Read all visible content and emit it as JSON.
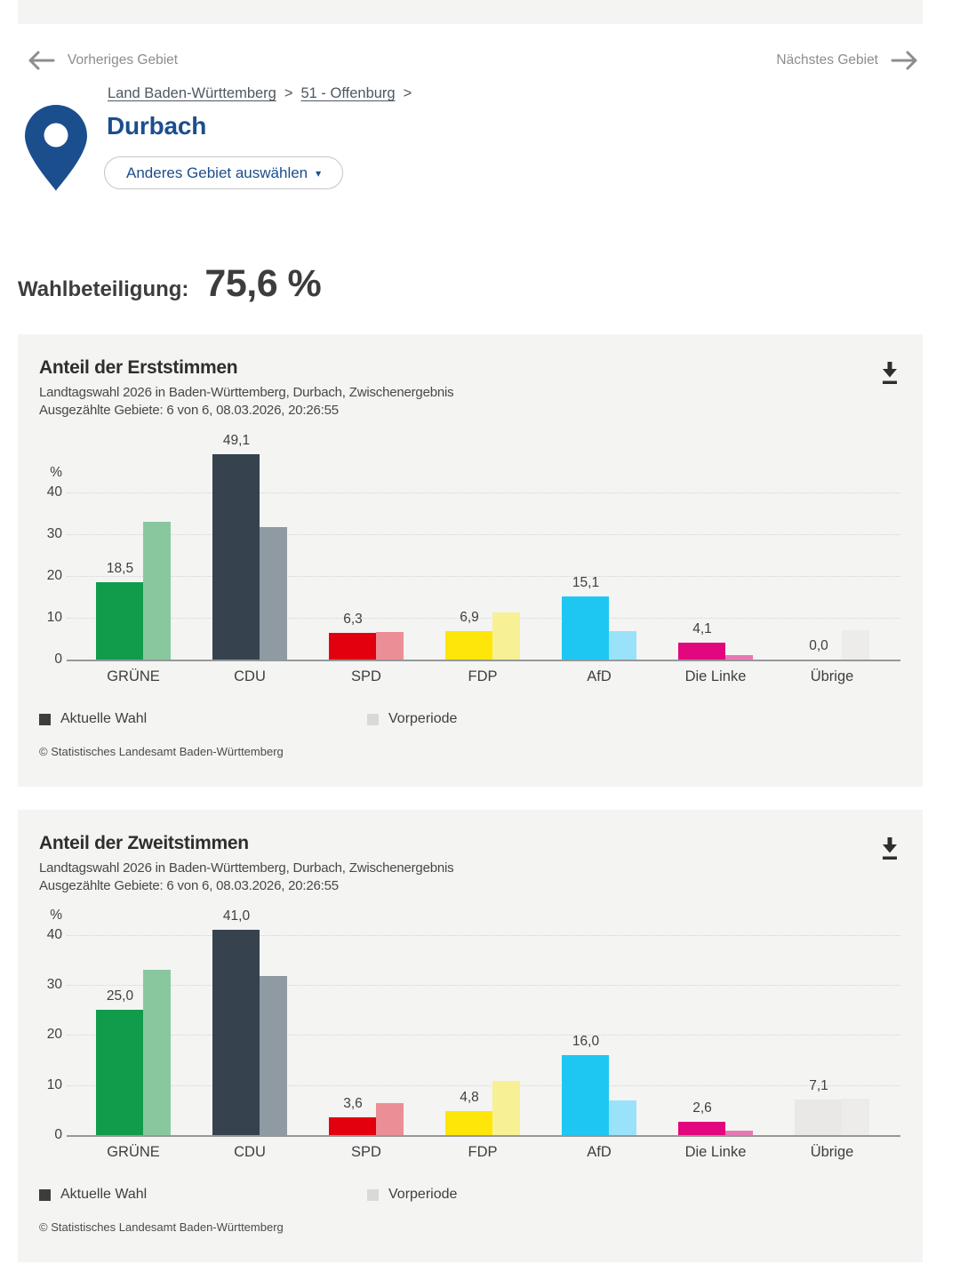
{
  "top_nav": {
    "prev_label": "Vorheriges Gebiet",
    "next_label": "Nächstes Gebiet"
  },
  "breadcrumb": {
    "items": [
      {
        "label": "Land Baden-Württemberg"
      },
      {
        "label": "51 - Offenburg"
      }
    ],
    "separator": ">"
  },
  "location": {
    "name": "Durbach",
    "select_button_label": "Anderes Gebiet auswählen",
    "select_button_caret": "▾"
  },
  "turnout": {
    "label": "Wahlbeteiligung:",
    "value": "75,6 %"
  },
  "colors": {
    "accent_blue": "#1b4e8d",
    "card_background": "#f4f4f3",
    "legend_current": "#3d3d3d",
    "legend_previous": "#d9d9d8"
  },
  "charts": [
    {
      "title": "Anteil der Erststimmen",
      "subtitle1": "Landtagswahl 2026 in Baden-Württemberg, Durbach, Zwischenergebnis",
      "subtitle2": "Ausgezählte Gebiete: 6 von 6, 08.03.2026, 20:26:55",
      "legend": {
        "current": "Aktuelle Wahl",
        "previous": "Vorperiode"
      },
      "copyright": "© Statistisches Landesamt Baden-Württemberg",
      "chart_data": {
        "type": "bar",
        "unit": "%",
        "categories": [
          "GRÜNE",
          "CDU",
          "SPD",
          "FDP",
          "AfD",
          "Die Linke",
          "Übrige"
        ],
        "series": [
          {
            "name": "Aktuelle Wahl",
            "values": [
              18.5,
              49.1,
              6.3,
              6.9,
              15.1,
              4.1,
              0.0
            ],
            "labels": [
              "18,5",
              "49,1",
              "6,3",
              "6,9",
              "15,1",
              "4,1",
              "0,0"
            ]
          },
          {
            "name": "Vorperiode",
            "values": [
              33.0,
              31.8,
              6.5,
              11.2,
              6.8,
              1.1,
              7.0
            ],
            "estimated_from_pixels": true
          }
        ],
        "bar_colors": [
          "#109c4b",
          "#36424e",
          "#e2000f",
          "#ffe60a",
          "#1ec7f2",
          "#e2077e",
          "#e9e8e6"
        ],
        "prev_bar_colors": [
          "#89c89e",
          "#909aa3",
          "#ec8e95",
          "#f8f095",
          "#9ae2f9",
          "#e878b5",
          "#edecea"
        ],
        "ylabel": "%",
        "yticks": [
          0,
          10,
          20,
          30,
          40
        ],
        "ylim": [
          0,
          51.5
        ],
        "grid": "dotted-horizontal",
        "legend_position": "bottom"
      }
    },
    {
      "title": "Anteil der Zweitstimmen",
      "subtitle1": "Landtagswahl 2026 in Baden-Württemberg, Durbach, Zwischenergebnis",
      "subtitle2": "Ausgezählte Gebiete: 6 von 6, 08.03.2026, 20:26:55",
      "legend": {
        "current": "Aktuelle Wahl",
        "previous": "Vorperiode"
      },
      "copyright": "© Statistisches Landesamt Baden-Württemberg",
      "chart_data": {
        "type": "bar",
        "unit": "%",
        "categories": [
          "GRÜNE",
          "CDU",
          "SPD",
          "FDP",
          "AfD",
          "Die Linke",
          "Übrige"
        ],
        "series": [
          {
            "name": "Aktuelle Wahl",
            "values": [
              25.0,
              41.0,
              3.6,
              4.8,
              16.0,
              2.6,
              7.1
            ],
            "labels": [
              "25,0",
              "41,0",
              "3,6",
              "4,8",
              "16,0",
              "2,6",
              "7,1"
            ]
          },
          {
            "name": "Vorperiode",
            "values": [
              33.0,
              31.8,
              6.4,
              10.8,
              6.9,
              0.9,
              7.3
            ],
            "estimated_from_pixels": true
          }
        ],
        "bar_colors": [
          "#109c4b",
          "#36424e",
          "#e2000f",
          "#ffe60a",
          "#1ec7f2",
          "#e2077e",
          "#e9e8e6"
        ],
        "prev_bar_colors": [
          "#89c89e",
          "#909aa3",
          "#ec8e95",
          "#f8f095",
          "#9ae2f9",
          "#e878b5",
          "#edecea"
        ],
        "ylabel": "%",
        "yticks": [
          0,
          10,
          20,
          30,
          40
        ],
        "ylim": [
          0,
          43
        ],
        "grid": "dotted-horizontal",
        "legend_position": "bottom"
      }
    }
  ]
}
